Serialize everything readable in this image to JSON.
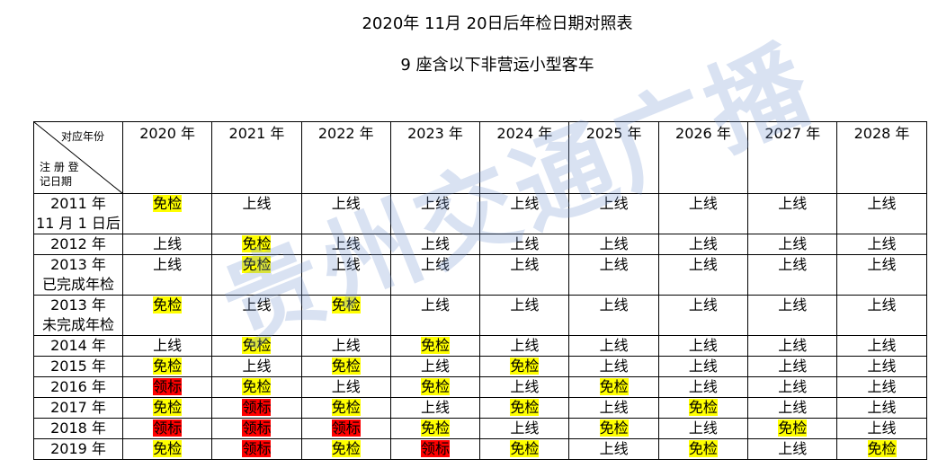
{
  "header": {
    "title": "2020年 11月 20日后年检日期对照表",
    "subtitle": "9 座含以下非营运小型客车"
  },
  "watermark": "贵州交通广播",
  "table": {
    "corner": {
      "top": "对应年份",
      "bottom": [
        "注 册 登",
        "记日期"
      ]
    },
    "columns": [
      "2020 年",
      "2021 年",
      "2022 年",
      "2023 年",
      "2024 年",
      "2025 年",
      "2026 年",
      "2027 年",
      "2028 年"
    ],
    "rows": [
      {
        "label": [
          "2011 年",
          "11 月 1 日后"
        ],
        "cells": [
          {
            "text": "免检",
            "highlight": "#ffff00"
          },
          {
            "text": "上线"
          },
          {
            "text": "上线"
          },
          {
            "text": "上线"
          },
          {
            "text": "上线"
          },
          {
            "text": "上线"
          },
          {
            "text": "上线"
          },
          {
            "text": "上线"
          },
          {
            "text": "上线"
          }
        ]
      },
      {
        "label": [
          "2012 年"
        ],
        "cells": [
          {
            "text": "上线"
          },
          {
            "text": "免检",
            "highlight": "#ffff00"
          },
          {
            "text": "上线"
          },
          {
            "text": "上线"
          },
          {
            "text": "上线"
          },
          {
            "text": "上线"
          },
          {
            "text": "上线"
          },
          {
            "text": "上线"
          },
          {
            "text": "上线"
          }
        ]
      },
      {
        "label": [
          "2013 年",
          "已完成年检"
        ],
        "cells": [
          {
            "text": "上线"
          },
          {
            "text": "免检",
            "highlight": "#ffff00"
          },
          {
            "text": "上线"
          },
          {
            "text": "上线"
          },
          {
            "text": "上线"
          },
          {
            "text": "上线"
          },
          {
            "text": "上线"
          },
          {
            "text": "上线"
          },
          {
            "text": "上线"
          }
        ]
      },
      {
        "label": [
          "2013 年",
          "未完成年检"
        ],
        "cells": [
          {
            "text": "免检",
            "highlight": "#ffff00"
          },
          {
            "text": "上线"
          },
          {
            "text": "免检",
            "highlight": "#ffff00"
          },
          {
            "text": "上线"
          },
          {
            "text": "上线"
          },
          {
            "text": "上线"
          },
          {
            "text": "上线"
          },
          {
            "text": "上线"
          },
          {
            "text": "上线"
          }
        ]
      },
      {
        "label": [
          "2014 年"
        ],
        "cells": [
          {
            "text": "上线"
          },
          {
            "text": "免检",
            "highlight": "#ffff00"
          },
          {
            "text": "上线"
          },
          {
            "text": "免检",
            "highlight": "#ffff00"
          },
          {
            "text": "上线"
          },
          {
            "text": "上线"
          },
          {
            "text": "上线"
          },
          {
            "text": "上线"
          },
          {
            "text": "上线"
          }
        ]
      },
      {
        "label": [
          "2015 年"
        ],
        "cells": [
          {
            "text": "免检",
            "highlight": "#ffff00"
          },
          {
            "text": "上线"
          },
          {
            "text": "免检",
            "highlight": "#ffff00"
          },
          {
            "text": "上线"
          },
          {
            "text": "免检",
            "highlight": "#ffff00"
          },
          {
            "text": "上线"
          },
          {
            "text": "上线"
          },
          {
            "text": "上线"
          },
          {
            "text": "上线"
          }
        ]
      },
      {
        "label": [
          "2016 年"
        ],
        "cells": [
          {
            "text": "领标",
            "highlight": "#ff0000"
          },
          {
            "text": "免检",
            "highlight": "#ffff00"
          },
          {
            "text": "上线"
          },
          {
            "text": "免检",
            "highlight": "#ffff00"
          },
          {
            "text": "上线"
          },
          {
            "text": "免检",
            "highlight": "#ffff00"
          },
          {
            "text": "上线"
          },
          {
            "text": "上线"
          },
          {
            "text": "上线"
          }
        ]
      },
      {
        "label": [
          "2017 年"
        ],
        "cells": [
          {
            "text": "免检",
            "highlight": "#ffff00"
          },
          {
            "text": "领标",
            "highlight": "#ff0000"
          },
          {
            "text": "免检",
            "highlight": "#ffff00"
          },
          {
            "text": "上线"
          },
          {
            "text": "免检",
            "highlight": "#ffff00"
          },
          {
            "text": "上线"
          },
          {
            "text": "免检",
            "highlight": "#ffff00"
          },
          {
            "text": "上线"
          },
          {
            "text": "上线"
          }
        ]
      },
      {
        "label": [
          "2018 年"
        ],
        "cells": [
          {
            "text": "领标",
            "highlight": "#ff0000"
          },
          {
            "text": "领标",
            "highlight": "#ff0000"
          },
          {
            "text": "领标",
            "highlight": "#ff0000"
          },
          {
            "text": "免检",
            "highlight": "#ffff00"
          },
          {
            "text": "上线"
          },
          {
            "text": "免检",
            "highlight": "#ffff00"
          },
          {
            "text": "上线"
          },
          {
            "text": "免检",
            "highlight": "#ffff00"
          },
          {
            "text": "上线"
          }
        ]
      },
      {
        "label": [
          "2019 年"
        ],
        "cells": [
          {
            "text": "免检",
            "highlight": "#ffff00"
          },
          {
            "text": "领标",
            "highlight": "#ff0000"
          },
          {
            "text": "免检",
            "highlight": "#ffff00"
          },
          {
            "text": "领标",
            "highlight": "#ff0000"
          },
          {
            "text": "免检",
            "highlight": "#ffff00"
          },
          {
            "text": "上线"
          },
          {
            "text": "免检",
            "highlight": "#ffff00"
          },
          {
            "text": "上线"
          },
          {
            "text": "免检",
            "highlight": "#ffff00"
          }
        ]
      }
    ]
  }
}
